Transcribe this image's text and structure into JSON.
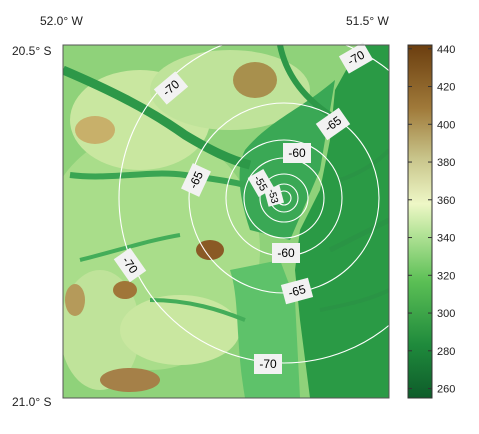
{
  "map": {
    "corner_labels": {
      "top_left_lon": "52.0° W",
      "top_right_lon": "51.5° W",
      "top_left_lat": "20.5° S",
      "bottom_left_lat": "21.0° S"
    },
    "contour_labels": [
      "-70",
      "-65",
      "-60",
      "-55",
      "-53",
      "-70",
      "-65",
      "-60",
      "-65",
      "-70"
    ],
    "colors": {
      "low_elevation": "#1a7a3a",
      "mid_elevation": "#d6f0b0",
      "high_elevation": "#6b3e0f",
      "contour_line": "#ffffff"
    }
  },
  "colorbar": {
    "ticks": [
      "440",
      "420",
      "400",
      "380",
      "360",
      "340",
      "320",
      "300",
      "280",
      "260"
    ],
    "min": 255,
    "max": 442
  }
}
